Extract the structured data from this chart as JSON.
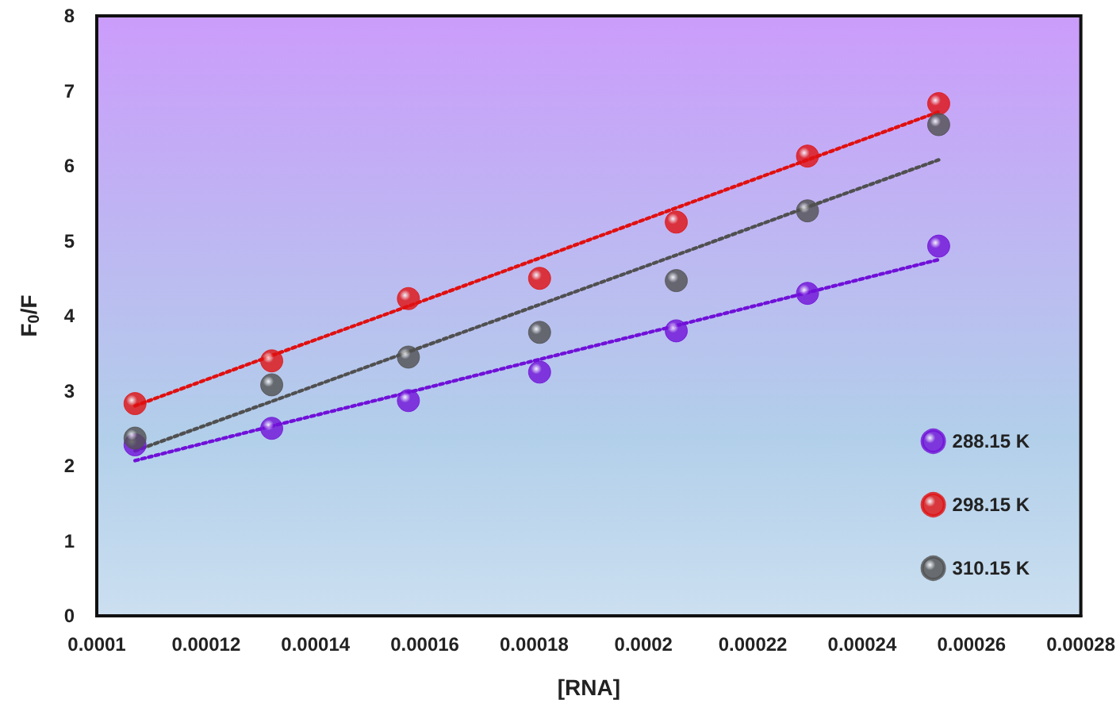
{
  "chart_data": {
    "type": "scatter",
    "xlabel": "[RNA]",
    "ylabel": "F$_{0}$/F",
    "x": [
      0.000107,
      0.000132,
      0.000157,
      0.000181,
      0.000206,
      0.00023,
      0.000254
    ],
    "series": [
      {
        "name": "288.15 K",
        "color": "#7010d8",
        "values": [
          2.28,
          2.5,
          2.87,
          3.25,
          3.8,
          4.3,
          4.93
        ]
      },
      {
        "name": "298.15 K",
        "color": "#e01010",
        "values": [
          2.83,
          3.4,
          4.23,
          4.5,
          5.25,
          6.13,
          6.83
        ]
      },
      {
        "name": "310.15 K",
        "color": "#505050",
        "values": [
          2.37,
          3.08,
          3.45,
          3.78,
          4.47,
          5.4,
          6.55
        ]
      },
      {
        "type": "line",
        "color": "#7010d8",
        "line_style": "dotted",
        "marker": "none",
        "values": [
          2.07,
          2.53,
          2.98,
          3.42,
          3.87,
          4.31,
          4.75
        ]
      },
      {
        "type": "line",
        "color": "#e01010",
        "line_style": "dotted",
        "marker": "none",
        "values": [
          2.8,
          3.47,
          4.13,
          4.77,
          5.44,
          6.08,
          6.72
        ]
      },
      {
        "type": "line",
        "color": "#505050",
        "line_style": "dotted",
        "marker": "none",
        "values": [
          2.2,
          2.86,
          3.52,
          4.15,
          4.81,
          5.45,
          6.08
        ]
      }
    ],
    "xlim": [
      0.0001,
      0.00028
    ],
    "xticks": [
      0.0001,
      0.00012,
      0.00014,
      0.00016,
      0.00018,
      0.0002,
      0.00022,
      0.00024,
      0.00026,
      0.00028
    ],
    "ylim": [
      0,
      8
    ],
    "yticks": [
      0,
      1,
      2,
      3,
      4,
      5,
      6,
      7,
      8
    ],
    "grid": false,
    "legend": "bottom right",
    "marker": "circle"
  }
}
